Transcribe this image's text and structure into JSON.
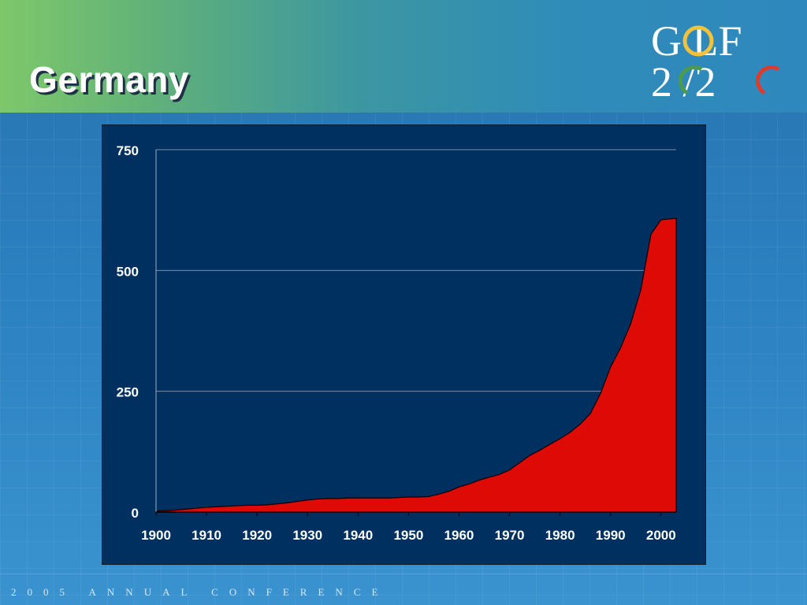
{
  "slide": {
    "title": "Germany",
    "footer": "2005 ANNUAL CONFERENCE"
  },
  "logo": {
    "line1": "G LF",
    "line2": "2 /2",
    "ring_colors": [
      "#e03a2e",
      "#f2c23a",
      "#4a9a4f"
    ]
  },
  "colors": {
    "area_fill": "#dd0a05",
    "plot_background": "#00305f",
    "gridline": "#7a8ea8"
  },
  "chart_data": {
    "type": "area",
    "title": "",
    "xlabel": "",
    "ylabel": "",
    "xlim": [
      1900,
      2003
    ],
    "ylim": [
      0,
      750
    ],
    "grid": true,
    "x_ticks": [
      1900,
      1910,
      1920,
      1930,
      1940,
      1950,
      1960,
      1970,
      1980,
      1990,
      2000
    ],
    "y_ticks": [
      0,
      250,
      500,
      750
    ],
    "series": [
      {
        "x": [
          1900,
          1902,
          1904,
          1906,
          1908,
          1910,
          1912,
          1914,
          1916,
          1918,
          1920,
          1922,
          1924,
          1926,
          1928,
          1930,
          1932,
          1934,
          1936,
          1938,
          1940,
          1942,
          1944,
          1946,
          1948,
          1950,
          1952,
          1954,
          1956,
          1958,
          1960,
          1962,
          1964,
          1966,
          1968,
          1970,
          1972,
          1974,
          1976,
          1978,
          1980,
          1982,
          1984,
          1986,
          1988,
          1990,
          1992,
          1994,
          1996,
          1998,
          2000,
          2003
        ],
        "values": [
          2,
          3,
          4,
          6,
          8,
          10,
          11,
          12,
          13,
          14,
          14,
          15,
          17,
          19,
          22,
          25,
          27,
          28,
          28,
          29,
          29,
          29,
          29,
          29,
          30,
          31,
          31,
          32,
          37,
          43,
          52,
          58,
          66,
          72,
          78,
          87,
          102,
          117,
          128,
          140,
          152,
          165,
          182,
          204,
          245,
          300,
          340,
          390,
          460,
          575,
          605,
          608
        ]
      }
    ]
  }
}
